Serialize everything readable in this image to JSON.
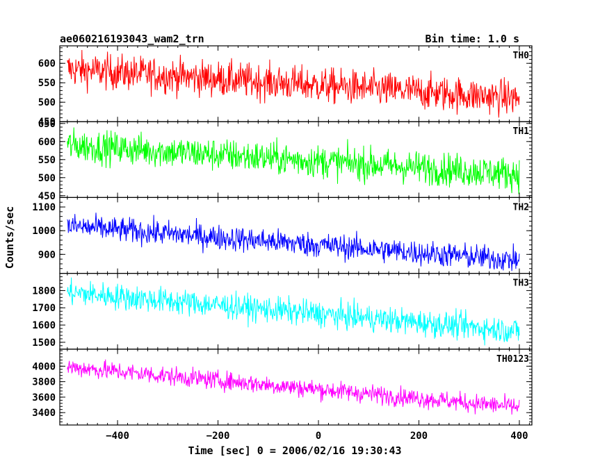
{
  "chart_data": {
    "type": "line",
    "title_left": "ae060216193043_wam2_trn",
    "title_right": "Bin time: 1.0 s",
    "xlabel": "Time [sec] 0 = 2006/02/16 19:30:43",
    "ylabel": "Counts/sec",
    "xlim": [
      -515,
      425
    ],
    "x_ticks": [
      -400,
      -200,
      0,
      200,
      400
    ],
    "x_start": -500,
    "x_end": 400,
    "bin_time": 1.0,
    "panels": [
      {
        "name": "TH0",
        "color": "#ff0000",
        "ylim": [
          450,
          645
        ],
        "y_ticks": [
          450,
          500,
          550,
          600
        ],
        "trend_start": 585,
        "trend_end": 510,
        "noise_amp": 30
      },
      {
        "name": "TH1",
        "color": "#00ff00",
        "ylim": [
          445,
          655
        ],
        "y_ticks": [
          450,
          500,
          550,
          600,
          650
        ],
        "trend_start": 590,
        "trend_end": 510,
        "noise_amp": 30
      },
      {
        "name": "TH2",
        "color": "#0000ff",
        "ylim": [
          820,
          1140
        ],
        "y_ticks": [
          900,
          1000,
          1100
        ],
        "trend_start": 1020,
        "trend_end": 875,
        "noise_amp": 35
      },
      {
        "name": "TH3",
        "color": "#00ffff",
        "ylim": [
          1460,
          1900
        ],
        "y_ticks": [
          1500,
          1600,
          1700,
          1800
        ],
        "trend_start": 1790,
        "trend_end": 1565,
        "noise_amp": 50
      },
      {
        "name": "TH0123",
        "color": "#ff00ff",
        "ylim": [
          3240,
          4220
        ],
        "y_ticks": [
          3400,
          3600,
          3800,
          4000
        ],
        "trend_start": 3990,
        "trend_end": 3470,
        "noise_amp": 80
      }
    ]
  }
}
